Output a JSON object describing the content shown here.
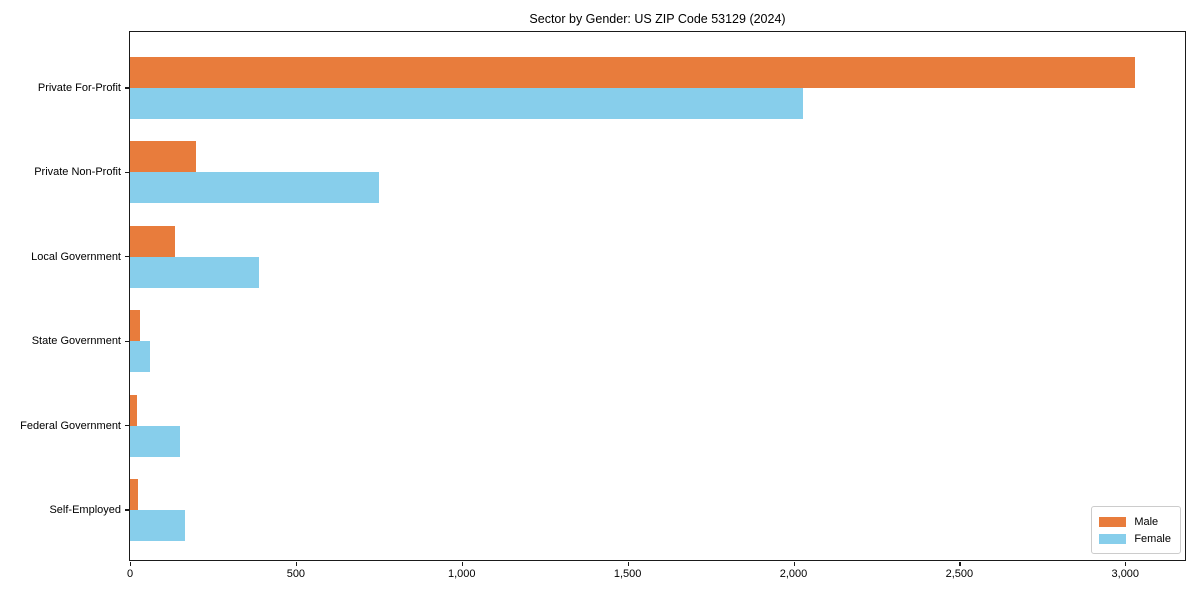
{
  "chart_data": {
    "type": "bar",
    "orientation": "horizontal",
    "title": "Sector by Gender: US ZIP Code 53129 (2024)",
    "categories": [
      "Private For-Profit",
      "Private Non-Profit",
      "Local Government",
      "State Government",
      "Federal Government",
      "Self-Employed"
    ],
    "series": [
      {
        "name": "Male",
        "color": "#E87C3C",
        "values": [
          3030,
          200,
          135,
          30,
          20,
          25
        ]
      },
      {
        "name": "Female",
        "color": "#87CEEB",
        "values": [
          2030,
          750,
          390,
          60,
          150,
          165
        ]
      }
    ],
    "xlabel": "",
    "ylabel": "",
    "xlim": [
      0,
      3180
    ],
    "xticks": [
      0,
      500,
      1000,
      1500,
      2000,
      2500,
      3000
    ],
    "xtick_labels": [
      "0",
      "500",
      "1,000",
      "1,500",
      "2,000",
      "2,500",
      "3,000"
    ],
    "grid": false,
    "legend": {
      "position": "lower right",
      "entries": [
        {
          "label": "Male",
          "color": "#E87C3C"
        },
        {
          "label": "Female",
          "color": "#87CEEB"
        }
      ]
    },
    "spine_color": "#1a1a1a",
    "background_color": "#ffffff"
  }
}
